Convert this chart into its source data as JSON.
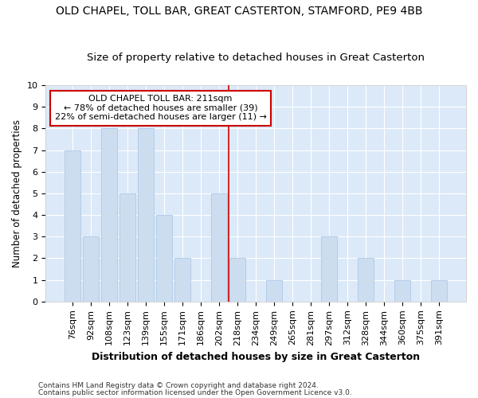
{
  "title": "OLD CHAPEL, TOLL BAR, GREAT CASTERTON, STAMFORD, PE9 4BB",
  "subtitle": "Size of property relative to detached houses in Great Casterton",
  "xlabel": "Distribution of detached houses by size in Great Casterton",
  "ylabel": "Number of detached properties",
  "categories": [
    "76sqm",
    "92sqm",
    "108sqm",
    "123sqm",
    "139sqm",
    "155sqm",
    "171sqm",
    "186sqm",
    "202sqm",
    "218sqm",
    "234sqm",
    "249sqm",
    "265sqm",
    "281sqm",
    "297sqm",
    "312sqm",
    "328sqm",
    "344sqm",
    "360sqm",
    "375sqm",
    "391sqm"
  ],
  "values": [
    7,
    3,
    8,
    5,
    8,
    4,
    2,
    0,
    5,
    2,
    0,
    1,
    0,
    0,
    3,
    0,
    2,
    0,
    1,
    0,
    1
  ],
  "bar_color": "#ccddf0",
  "bar_edgecolor": "#aec9e8",
  "ylim": [
    0,
    10
  ],
  "yticks": [
    0,
    1,
    2,
    3,
    4,
    5,
    6,
    7,
    8,
    9,
    10
  ],
  "vline_x": 8.5,
  "vline_color": "#cc0000",
  "annotation_text": "OLD CHAPEL TOLL BAR: 211sqm\n← 78% of detached houses are smaller (39)\n22% of semi-detached houses are larger (11) →",
  "annotation_box_edgecolor": "#cc0000",
  "annotation_box_facecolor": "#ffffff",
  "footer1": "Contains HM Land Registry data © Crown copyright and database right 2024.",
  "footer2": "Contains public sector information licensed under the Open Government Licence v3.0.",
  "plot_bg_color": "#dce9f8",
  "fig_bg_color": "#ffffff",
  "grid_color": "#ffffff",
  "title_fontsize": 10,
  "subtitle_fontsize": 9.5,
  "xlabel_fontsize": 9,
  "ylabel_fontsize": 8.5,
  "tick_fontsize": 8,
  "annotation_fontsize": 8,
  "footer_fontsize": 6.5
}
